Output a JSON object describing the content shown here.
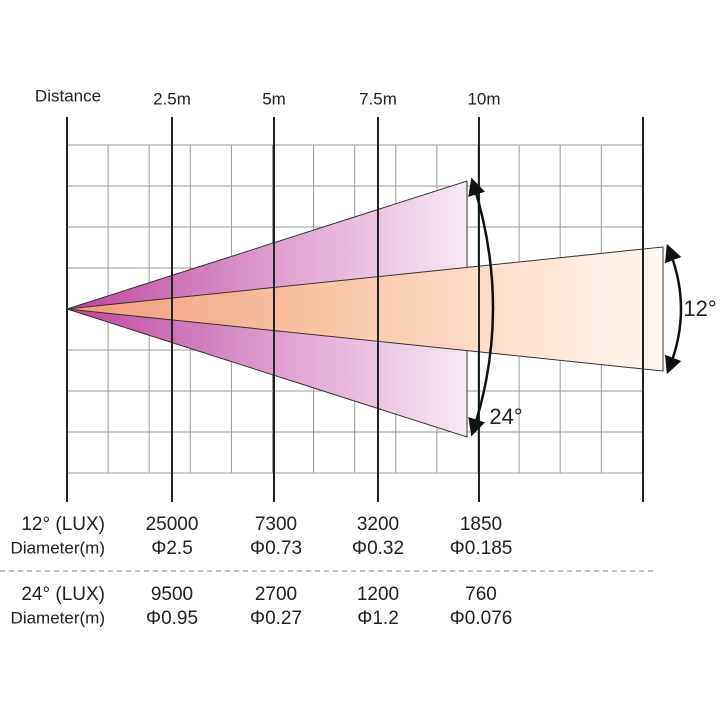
{
  "distance_label": "Distance",
  "distances": [
    "2.5m",
    "5m",
    "7.5m",
    "10m"
  ],
  "beams": [
    {
      "label": "12°"
    },
    {
      "label": "24°"
    }
  ],
  "table": {
    "rows": [
      {
        "label": "12° (LUX)",
        "values": [
          "25000",
          "7300",
          "3200",
          "1850"
        ]
      },
      {
        "label": "Diameter(m)",
        "values": [
          "Φ2.5",
          "Φ0.73",
          "Φ0.32",
          "Φ0.185"
        ]
      },
      {
        "label": "24° (LUX)",
        "values": [
          "9500",
          "2700",
          "1200",
          "760"
        ]
      },
      {
        "label": "Diameter(m)",
        "values": [
          "Φ0.95",
          "Φ0.27",
          "Φ1.2",
          "Φ0.076"
        ]
      }
    ]
  }
}
